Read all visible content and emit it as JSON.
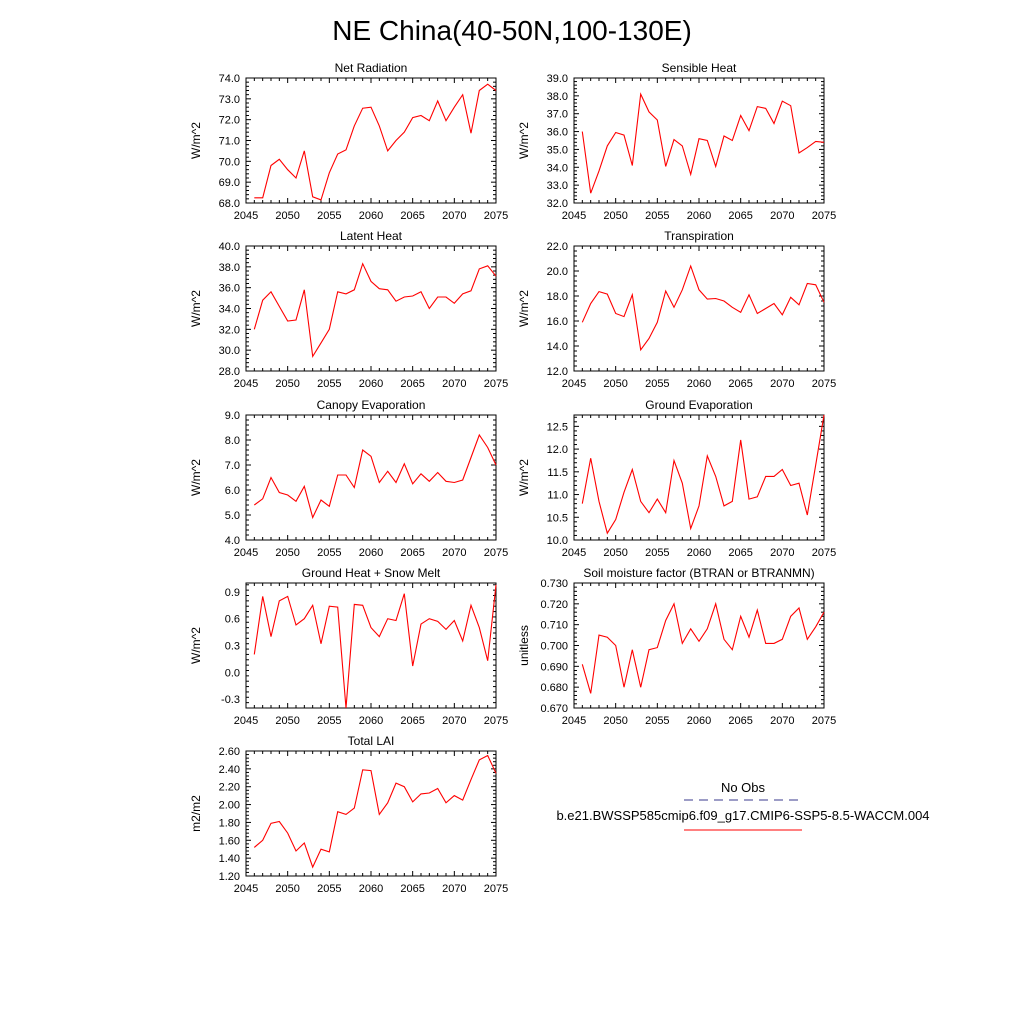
{
  "figure_title": "NE China(40-50N,100-130E)",
  "legend": {
    "obs_label": "No Obs",
    "obs_color": "#3a3a8c",
    "model_label": "b.e21.BWSSP585cmip6.f09_g17.CMIP6-SSP5-8.5-WACCM.004",
    "model_color": "#ff0000"
  },
  "chart_data": [
    {
      "type": "line",
      "title": "Net Radiation",
      "ylabel": "W/m^2",
      "xlim": [
        2045,
        2075
      ],
      "ylim": [
        68,
        74
      ],
      "grid": false,
      "xticks": [
        2045,
        2050,
        2055,
        2060,
        2065,
        2070,
        2075
      ],
      "yticks": [
        68.0,
        69.0,
        70.0,
        71.0,
        72.0,
        73.0,
        74.0
      ],
      "ydecimals": 1,
      "x": [
        2046,
        2047,
        2048,
        2049,
        2050,
        2051,
        2052,
        2053,
        2054,
        2055,
        2056,
        2057,
        2058,
        2059,
        2060,
        2061,
        2062,
        2063,
        2064,
        2065,
        2066,
        2067,
        2068,
        2069,
        2070,
        2071,
        2072,
        2073,
        2074,
        2075
      ],
      "series": [
        {
          "color": "#ff0000",
          "values": [
            68.25,
            68.25,
            69.8,
            70.1,
            69.6,
            69.2,
            70.5,
            68.3,
            68.15,
            69.45,
            70.35,
            70.55,
            71.7,
            72.55,
            72.6,
            71.7,
            70.5,
            71.0,
            71.4,
            72.1,
            72.2,
            71.95,
            72.9,
            71.95,
            72.6,
            73.2,
            71.35,
            73.4,
            73.7,
            73.4
          ]
        }
      ]
    },
    {
      "type": "line",
      "title": "Sensible Heat",
      "ylabel": "W/m^2",
      "xlim": [
        2045,
        2075
      ],
      "ylim": [
        32,
        39
      ],
      "grid": false,
      "xticks": [
        2045,
        2050,
        2055,
        2060,
        2065,
        2070,
        2075
      ],
      "yticks": [
        32.0,
        33.0,
        34.0,
        35.0,
        36.0,
        37.0,
        38.0,
        39.0
      ],
      "ydecimals": 1,
      "x": [
        2046,
        2047,
        2048,
        2049,
        2050,
        2051,
        2052,
        2053,
        2054,
        2055,
        2056,
        2057,
        2058,
        2059,
        2060,
        2061,
        2062,
        2063,
        2064,
        2065,
        2066,
        2067,
        2068,
        2069,
        2070,
        2071,
        2072,
        2073,
        2074,
        2075
      ],
      "series": [
        {
          "color": "#ff0000",
          "values": [
            36.0,
            32.55,
            33.8,
            35.2,
            35.95,
            35.8,
            34.1,
            38.1,
            37.1,
            36.65,
            34.05,
            35.55,
            35.2,
            33.6,
            35.6,
            35.5,
            34.05,
            35.75,
            35.5,
            36.9,
            36.05,
            37.4,
            37.3,
            36.45,
            37.7,
            37.45,
            34.8,
            35.1,
            35.45,
            35.4
          ]
        }
      ]
    },
    {
      "type": "line",
      "title": "Latent Heat",
      "ylabel": "W/m^2",
      "xlim": [
        2045,
        2075
      ],
      "ylim": [
        28,
        40
      ],
      "grid": false,
      "xticks": [
        2045,
        2050,
        2055,
        2060,
        2065,
        2070,
        2075
      ],
      "yticks": [
        28.0,
        30.0,
        32.0,
        34.0,
        36.0,
        38.0,
        40.0
      ],
      "ydecimals": 1,
      "x": [
        2046,
        2047,
        2048,
        2049,
        2050,
        2051,
        2052,
        2053,
        2054,
        2055,
        2056,
        2057,
        2058,
        2059,
        2060,
        2061,
        2062,
        2063,
        2064,
        2065,
        2066,
        2067,
        2068,
        2069,
        2070,
        2071,
        2072,
        2073,
        2074,
        2075
      ],
      "series": [
        {
          "color": "#ff0000",
          "values": [
            32.0,
            34.8,
            35.6,
            34.2,
            32.8,
            32.9,
            35.8,
            29.4,
            30.7,
            32.0,
            35.6,
            35.4,
            35.8,
            38.3,
            36.6,
            35.9,
            35.8,
            34.7,
            35.1,
            35.2,
            35.6,
            34.0,
            35.1,
            35.1,
            34.5,
            35.4,
            35.7,
            37.8,
            38.1,
            37.1
          ]
        }
      ]
    },
    {
      "type": "line",
      "title": "Transpiration",
      "ylabel": "W/m^2",
      "xlim": [
        2045,
        2075
      ],
      "ylim": [
        12,
        22
      ],
      "grid": false,
      "xticks": [
        2045,
        2050,
        2055,
        2060,
        2065,
        2070,
        2075
      ],
      "yticks": [
        12.0,
        14.0,
        16.0,
        18.0,
        20.0,
        22.0
      ],
      "ydecimals": 1,
      "x": [
        2046,
        2047,
        2048,
        2049,
        2050,
        2051,
        2052,
        2053,
        2054,
        2055,
        2056,
        2057,
        2058,
        2059,
        2060,
        2061,
        2062,
        2063,
        2064,
        2065,
        2066,
        2067,
        2068,
        2069,
        2070,
        2071,
        2072,
        2073,
        2074,
        2075
      ],
      "series": [
        {
          "color": "#ff0000",
          "values": [
            15.9,
            17.4,
            18.35,
            18.15,
            16.6,
            16.35,
            18.1,
            13.7,
            14.6,
            15.9,
            18.4,
            17.1,
            18.5,
            20.4,
            18.5,
            17.75,
            17.8,
            17.6,
            17.1,
            16.7,
            18.1,
            16.6,
            17.0,
            17.4,
            16.5,
            17.9,
            17.3,
            19.0,
            18.9,
            17.5
          ]
        }
      ]
    },
    {
      "type": "line",
      "title": "Canopy Evaporation",
      "ylabel": "W/m^2",
      "xlim": [
        2045,
        2075
      ],
      "ylim": [
        4,
        9
      ],
      "grid": false,
      "xticks": [
        2045,
        2050,
        2055,
        2060,
        2065,
        2070,
        2075
      ],
      "yticks": [
        4.0,
        5.0,
        6.0,
        7.0,
        8.0,
        9.0
      ],
      "ydecimals": 1,
      "x": [
        2046,
        2047,
        2048,
        2049,
        2050,
        2051,
        2052,
        2053,
        2054,
        2055,
        2056,
        2057,
        2058,
        2059,
        2060,
        2061,
        2062,
        2063,
        2064,
        2065,
        2066,
        2067,
        2068,
        2069,
        2070,
        2071,
        2072,
        2073,
        2074,
        2075
      ],
      "series": [
        {
          "color": "#ff0000",
          "values": [
            5.4,
            5.65,
            6.5,
            5.9,
            5.8,
            5.55,
            6.15,
            4.9,
            5.6,
            5.35,
            6.6,
            6.6,
            6.1,
            7.6,
            7.35,
            6.3,
            6.75,
            6.3,
            7.05,
            6.25,
            6.65,
            6.35,
            6.7,
            6.35,
            6.3,
            6.4,
            7.3,
            8.2,
            7.7,
            7.0
          ]
        }
      ]
    },
    {
      "type": "line",
      "title": "Ground Evaporation",
      "ylabel": "W/m^2",
      "xlim": [
        2045,
        2075
      ],
      "ylim": [
        10,
        12.75
      ],
      "grid": false,
      "xticks": [
        2045,
        2050,
        2055,
        2060,
        2065,
        2070,
        2075
      ],
      "yticks": [
        10.0,
        10.5,
        11.0,
        11.5,
        12.0,
        12.5
      ],
      "ydecimals": 1,
      "x": [
        2046,
        2047,
        2048,
        2049,
        2050,
        2051,
        2052,
        2053,
        2054,
        2055,
        2056,
        2057,
        2058,
        2059,
        2060,
        2061,
        2062,
        2063,
        2064,
        2065,
        2066,
        2067,
        2068,
        2069,
        2070,
        2071,
        2072,
        2073,
        2074,
        2075
      ],
      "series": [
        {
          "color": "#ff0000",
          "values": [
            10.8,
            11.8,
            10.85,
            10.15,
            10.45,
            11.05,
            11.55,
            10.85,
            10.6,
            10.9,
            10.6,
            11.75,
            11.25,
            10.25,
            10.75,
            11.85,
            11.4,
            10.75,
            10.85,
            12.2,
            10.9,
            10.95,
            11.4,
            11.4,
            11.55,
            11.2,
            11.25,
            10.55,
            11.65,
            12.75
          ]
        }
      ]
    },
    {
      "type": "line",
      "title": "Ground Heat + Snow Melt",
      "ylabel": "W/m^2",
      "xlim": [
        2045,
        2075
      ],
      "ylim": [
        -0.4,
        1.0
      ],
      "grid": false,
      "xticks": [
        2045,
        2050,
        2055,
        2060,
        2065,
        2070,
        2075
      ],
      "yticks": [
        -0.3,
        0.0,
        0.3,
        0.6,
        0.9
      ],
      "ydecimals": 1,
      "x": [
        2046,
        2047,
        2048,
        2049,
        2050,
        2051,
        2052,
        2053,
        2054,
        2055,
        2056,
        2057,
        2058,
        2059,
        2060,
        2061,
        2062,
        2063,
        2064,
        2065,
        2066,
        2067,
        2068,
        2069,
        2070,
        2071,
        2072,
        2073,
        2074,
        2075
      ],
      "series": [
        {
          "color": "#ff0000",
          "values": [
            0.2,
            0.85,
            0.4,
            0.8,
            0.85,
            0.53,
            0.6,
            0.75,
            0.32,
            0.74,
            0.73,
            -0.4,
            0.76,
            0.75,
            0.5,
            0.4,
            0.6,
            0.58,
            0.88,
            0.07,
            0.54,
            0.6,
            0.57,
            0.48,
            0.58,
            0.35,
            0.75,
            0.5,
            0.13,
            0.98
          ]
        }
      ]
    },
    {
      "type": "line",
      "title": "Soil moisture factor (BTRAN or BTRANMN)",
      "ylabel": "unitless",
      "xlim": [
        2045,
        2075
      ],
      "ylim": [
        0.67,
        0.73
      ],
      "grid": false,
      "xticks": [
        2045,
        2050,
        2055,
        2060,
        2065,
        2070,
        2075
      ],
      "yticks": [
        0.67,
        0.68,
        0.69,
        0.7,
        0.71,
        0.72,
        0.73
      ],
      "ydecimals": 3,
      "x": [
        2046,
        2047,
        2048,
        2049,
        2050,
        2051,
        2052,
        2053,
        2054,
        2055,
        2056,
        2057,
        2058,
        2059,
        2060,
        2061,
        2062,
        2063,
        2064,
        2065,
        2066,
        2067,
        2068,
        2069,
        2070,
        2071,
        2072,
        2073,
        2074,
        2075
      ],
      "series": [
        {
          "color": "#ff0000",
          "values": [
            0.691,
            0.677,
            0.705,
            0.704,
            0.7,
            0.68,
            0.698,
            0.68,
            0.698,
            0.699,
            0.712,
            0.72,
            0.701,
            0.708,
            0.702,
            0.708,
            0.72,
            0.703,
            0.698,
            0.714,
            0.704,
            0.717,
            0.701,
            0.701,
            0.703,
            0.714,
            0.718,
            0.703,
            0.709,
            0.716
          ]
        }
      ]
    },
    {
      "type": "line",
      "title": "Total LAI",
      "ylabel": "m2/m2",
      "xlim": [
        2045,
        2075
      ],
      "ylim": [
        1.2,
        2.6
      ],
      "grid": false,
      "xticks": [
        2045,
        2050,
        2055,
        2060,
        2065,
        2070,
        2075
      ],
      "yticks": [
        1.2,
        1.4,
        1.6,
        1.8,
        2.0,
        2.2,
        2.4,
        2.6
      ],
      "ydecimals": 2,
      "x": [
        2046,
        2047,
        2048,
        2049,
        2050,
        2051,
        2052,
        2053,
        2054,
        2055,
        2056,
        2057,
        2058,
        2059,
        2060,
        2061,
        2062,
        2063,
        2064,
        2065,
        2066,
        2067,
        2068,
        2069,
        2070,
        2071,
        2072,
        2073,
        2074,
        2075
      ],
      "series": [
        {
          "color": "#ff0000",
          "values": [
            1.52,
            1.6,
            1.79,
            1.81,
            1.68,
            1.48,
            1.57,
            1.3,
            1.5,
            1.47,
            1.92,
            1.89,
            1.96,
            2.39,
            2.38,
            1.89,
            2.02,
            2.24,
            2.2,
            2.03,
            2.12,
            2.13,
            2.18,
            2.02,
            2.1,
            2.05,
            2.28,
            2.5,
            2.55,
            2.35
          ]
        }
      ]
    }
  ]
}
